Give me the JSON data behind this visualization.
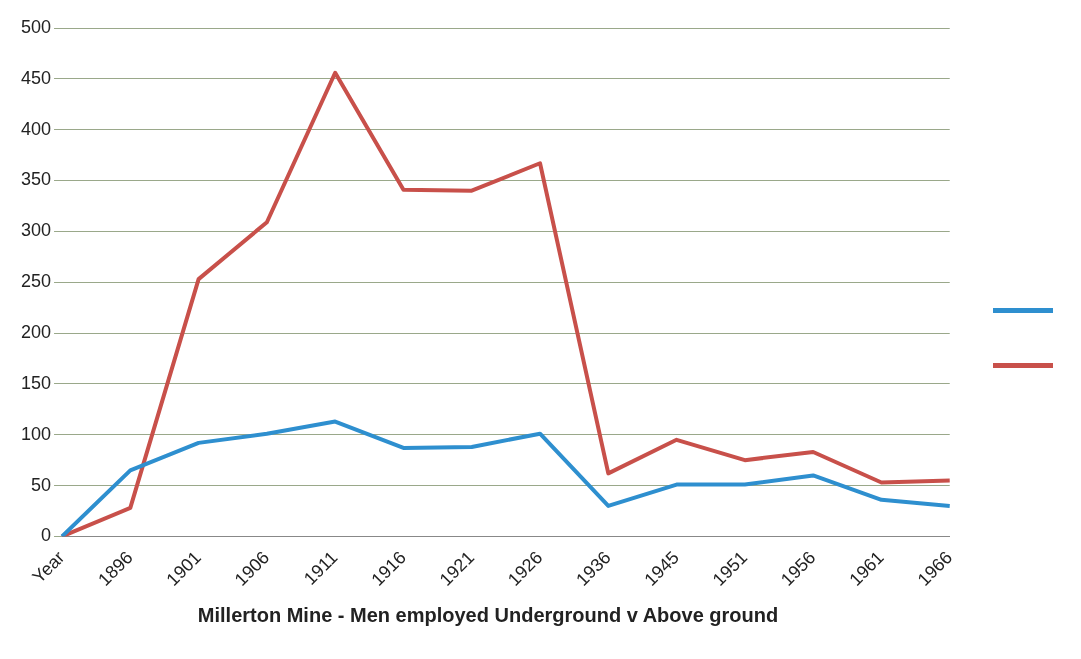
{
  "chart_data": {
    "type": "line",
    "title": "Millerton Mine - Men employed Underground v Above ground",
    "categories": [
      "Year",
      "1896",
      "1901",
      "1906",
      "1911",
      "1916",
      "1921",
      "1926",
      "1936",
      "1945",
      "1951",
      "1956",
      "1961",
      "1966"
    ],
    "series": [
      {
        "color": "#2e8fcf",
        "values": [
          0,
          65,
          92,
          101,
          113,
          87,
          88,
          101,
          30,
          51,
          51,
          60,
          36,
          30
        ]
      },
      {
        "color": "#c8504a",
        "values": [
          0,
          28,
          253,
          309,
          456,
          341,
          340,
          367,
          62,
          95,
          75,
          83,
          53,
          55
        ]
      }
    ],
    "ylim": [
      0,
      500
    ],
    "yticks": [
      0,
      50,
      100,
      150,
      200,
      250,
      300,
      350,
      400,
      450,
      500
    ],
    "grid": "y",
    "marker": "none",
    "line_style": "solid"
  }
}
